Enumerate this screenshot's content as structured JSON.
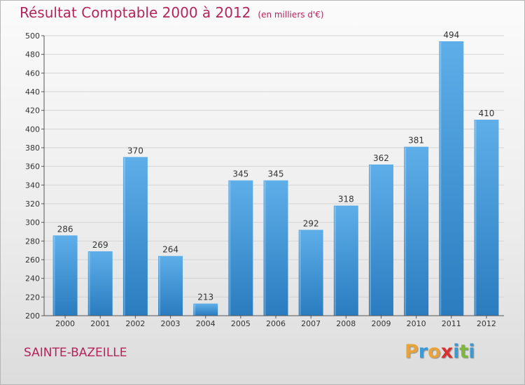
{
  "title": "Résultat Comptable 2000 à 2012",
  "subtitle": "(en milliers d'€)",
  "location": "SAINTE-BAZEILLE",
  "logo": {
    "text": "Proxiti",
    "colors": [
      "#e8a33a",
      "#3b9ad4",
      "#e8a33a",
      "#d8312f",
      "#3b9ad4",
      "#7cb83a",
      "#3b9ad4"
    ]
  },
  "colors": {
    "title": "#b5245a",
    "bar_light": "#5eaee9",
    "bar_dark": "#2a7cbf",
    "grid": "#d4d4d4"
  },
  "chart_data": {
    "type": "bar",
    "title": "Résultat Comptable 2000 à 2012",
    "subtitle": "(en milliers d'€)",
    "categories": [
      "2000",
      "2001",
      "2002",
      "2003",
      "2004",
      "2005",
      "2006",
      "2007",
      "2008",
      "2009",
      "2010",
      "2011",
      "2012"
    ],
    "values": [
      286,
      269,
      370,
      264,
      213,
      345,
      345,
      292,
      318,
      362,
      381,
      494,
      410
    ],
    "ylim": [
      200,
      500
    ],
    "yticks": [
      200,
      220,
      240,
      260,
      280,
      300,
      320,
      340,
      360,
      380,
      400,
      420,
      440,
      460,
      480,
      500
    ],
    "grid": true,
    "data_labels": true
  }
}
